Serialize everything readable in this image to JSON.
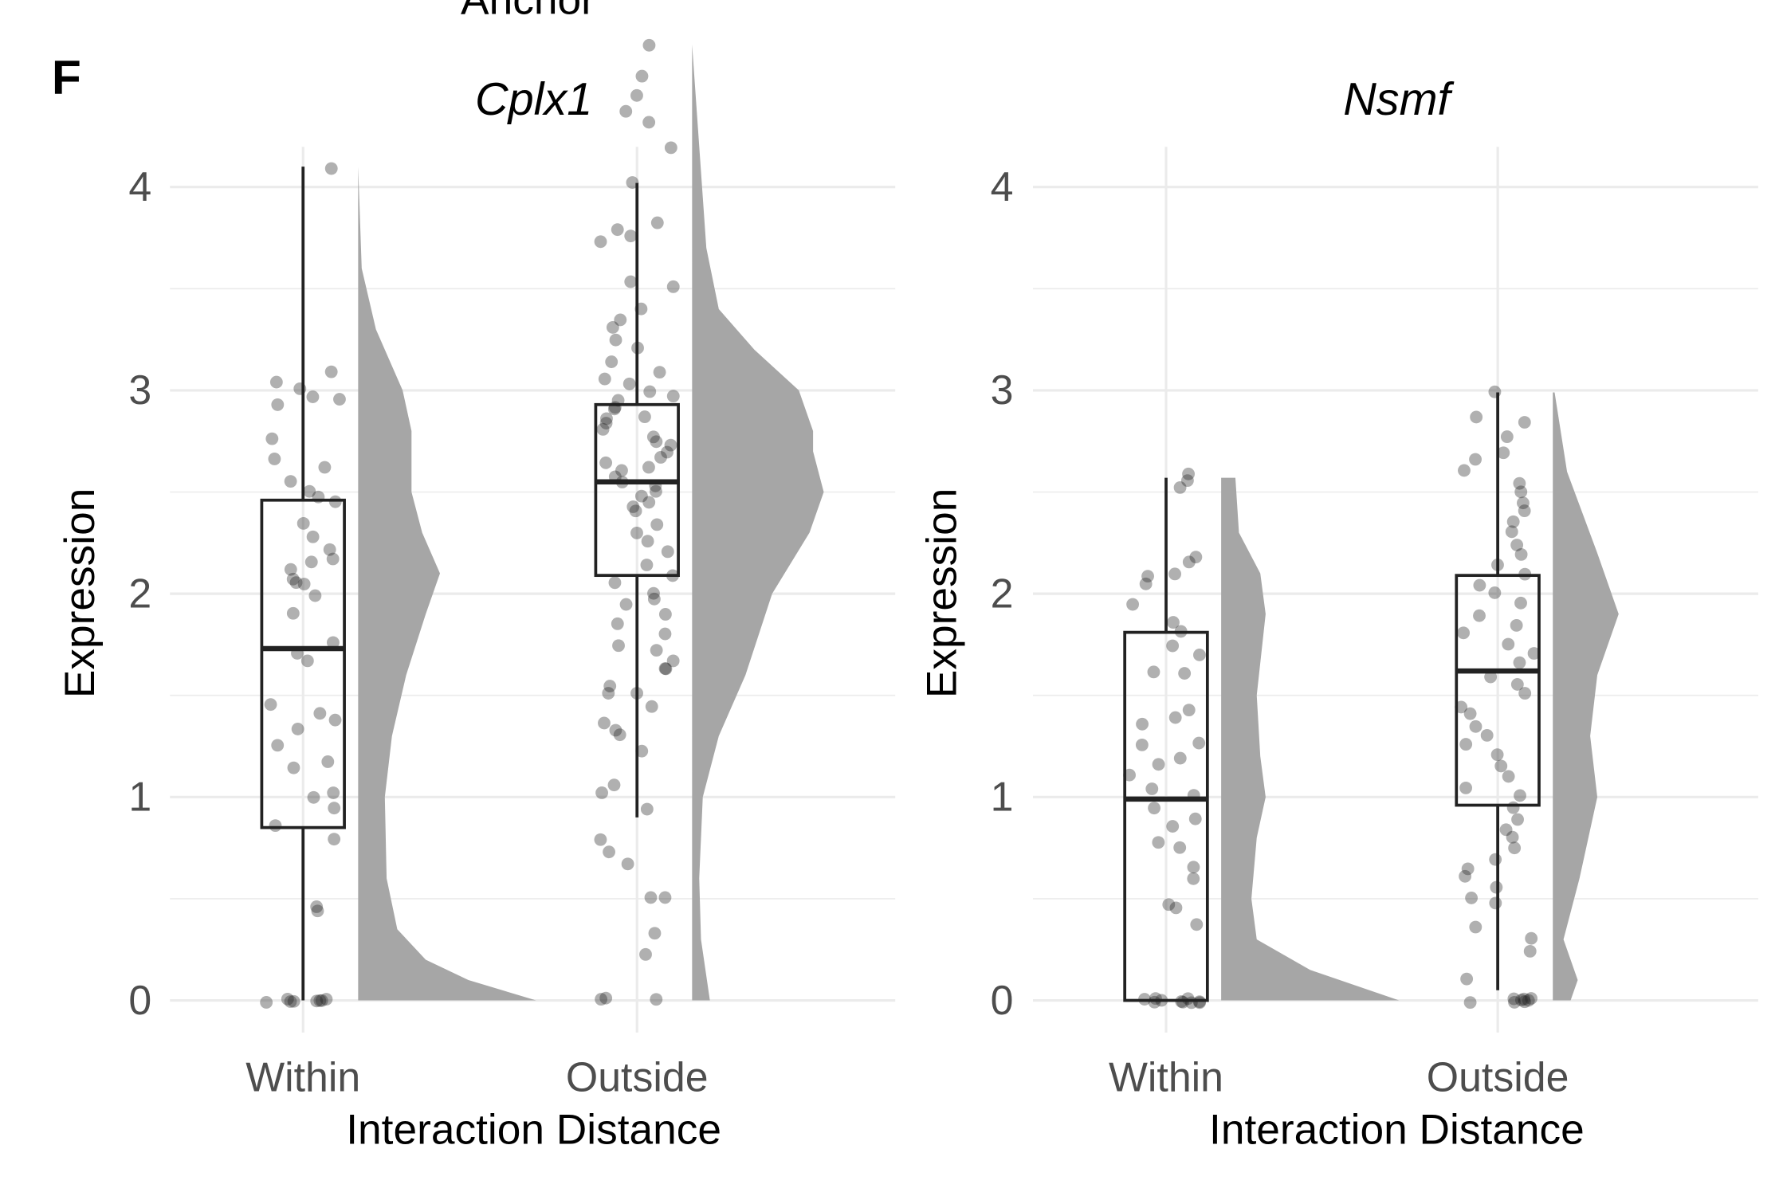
{
  "figure": {
    "panel_letter": "F",
    "top_label": "Anchor"
  },
  "chart_data": [
    {
      "type": "raincloud",
      "title": "Cplx1",
      "xlabel": "Interaction Distance",
      "ylabel": "Expression",
      "ylim": [
        -0.15,
        4.7
      ],
      "yticks": [
        "0",
        "1",
        "2",
        "3",
        "4"
      ],
      "categories": [
        "Within",
        "Outside"
      ],
      "grid": true,
      "groups": [
        {
          "name": "Within",
          "box": {
            "lower_whisker": 0,
            "q1": 0.85,
            "median": 1.73,
            "q3": 2.46,
            "upper_whisker": 4.1
          },
          "points": [
            0,
            0,
            0,
            0,
            0,
            0,
            0,
            0,
            0.43,
            0.46,
            0.8,
            0.86,
            0.95,
            1.0,
            1.03,
            1.14,
            1.17,
            1.25,
            1.33,
            1.38,
            1.42,
            1.45,
            1.67,
            1.7,
            1.75,
            1.9,
            2.0,
            2.04,
            2.05,
            2.07,
            2.12,
            2.15,
            2.17,
            2.22,
            2.28,
            2.35,
            2.45,
            2.47,
            2.5,
            2.55,
            2.63,
            2.67,
            2.76,
            2.92,
            2.95,
            2.96,
            3.01,
            3.05,
            3.1,
            4.1
          ],
          "density": [
            [
              0,
              1.0
            ],
            [
              0.1,
              0.62
            ],
            [
              0.2,
              0.38
            ],
            [
              0.35,
              0.22
            ],
            [
              0.6,
              0.16
            ],
            [
              1.0,
              0.15
            ],
            [
              1.3,
              0.19
            ],
            [
              1.6,
              0.27
            ],
            [
              1.9,
              0.38
            ],
            [
              2.1,
              0.46
            ],
            [
              2.3,
              0.36
            ],
            [
              2.5,
              0.3
            ],
            [
              2.8,
              0.3
            ],
            [
              3.0,
              0.25
            ],
            [
              3.3,
              0.1
            ],
            [
              3.6,
              0.02
            ],
            [
              4.1,
              0.0
            ]
          ]
        },
        {
          "name": "Outside",
          "box": {
            "lower_whisker": 0.9,
            "q1": 2.09,
            "median": 2.55,
            "q3": 2.93,
            "upper_whisker": 4.02
          },
          "points": [
            0,
            0,
            0,
            0.22,
            0.33,
            0.5,
            0.5,
            0.68,
            0.73,
            0.8,
            0.95,
            1.03,
            1.07,
            1.23,
            1.3,
            1.33,
            1.37,
            1.45,
            1.5,
            1.52,
            1.55,
            1.62,
            1.64,
            1.68,
            1.72,
            1.75,
            1.8,
            1.85,
            1.9,
            1.95,
            1.97,
            2.0,
            2.05,
            2.1,
            2.15,
            2.2,
            2.25,
            2.3,
            2.35,
            2.4,
            2.42,
            2.45,
            2.48,
            2.5,
            2.52,
            2.55,
            2.58,
            2.6,
            2.62,
            2.65,
            2.68,
            2.7,
            2.72,
            2.75,
            2.78,
            2.8,
            2.83,
            2.85,
            2.88,
            2.9,
            2.92,
            2.95,
            2.97,
            3.0,
            3.03,
            3.05,
            3.1,
            3.15,
            3.2,
            3.25,
            3.3,
            3.35,
            3.4,
            3.5,
            3.53,
            3.72,
            3.75,
            3.8,
            3.83,
            4.03,
            4.2,
            4.32,
            4.37,
            4.45,
            4.55,
            4.7
          ],
          "density": [
            [
              0,
              0.1
            ],
            [
              0.3,
              0.05
            ],
            [
              0.6,
              0.04
            ],
            [
              1.0,
              0.06
            ],
            [
              1.3,
              0.15
            ],
            [
              1.6,
              0.3
            ],
            [
              2.0,
              0.45
            ],
            [
              2.3,
              0.66
            ],
            [
              2.5,
              0.74
            ],
            [
              2.7,
              0.68
            ],
            [
              2.8,
              0.68
            ],
            [
              3.0,
              0.6
            ],
            [
              3.2,
              0.35
            ],
            [
              3.4,
              0.15
            ],
            [
              3.7,
              0.08
            ],
            [
              4.2,
              0.04
            ],
            [
              4.7,
              0.0
            ]
          ]
        }
      ]
    },
    {
      "type": "raincloud",
      "title": "Nsmf",
      "xlabel": "Interaction Distance",
      "ylabel": "Expression",
      "ylim": [
        -0.15,
        4.7
      ],
      "yticks": [
        "0",
        "1",
        "2",
        "3",
        "4"
      ],
      "categories": [
        "Within",
        "Outside"
      ],
      "grid": true,
      "groups": [
        {
          "name": "Within",
          "box": {
            "lower_whisker": 0,
            "q1": 0,
            "median": 0.99,
            "q3": 1.81,
            "upper_whisker": 2.57
          },
          "points": [
            0,
            0,
            0,
            0,
            0,
            0,
            0,
            0,
            0,
            0,
            0.38,
            0.46,
            0.47,
            0.6,
            0.65,
            0.75,
            0.77,
            0.85,
            0.9,
            0.95,
            1.0,
            1.05,
            1.1,
            1.15,
            1.2,
            1.25,
            1.27,
            1.35,
            1.38,
            1.43,
            1.6,
            1.62,
            1.7,
            1.75,
            1.82,
            1.85,
            1.95,
            2.05,
            2.08,
            2.1,
            2.15,
            2.17,
            2.52,
            2.56,
            2.58
          ],
          "density": [
            [
              0,
              1.0
            ],
            [
              0.15,
              0.5
            ],
            [
              0.3,
              0.2
            ],
            [
              0.5,
              0.17
            ],
            [
              0.8,
              0.2
            ],
            [
              1.0,
              0.25
            ],
            [
              1.2,
              0.22
            ],
            [
              1.5,
              0.2
            ],
            [
              1.9,
              0.25
            ],
            [
              2.1,
              0.22
            ],
            [
              2.3,
              0.1
            ],
            [
              2.57,
              0.08
            ]
          ]
        },
        {
          "name": "Outside",
          "box": {
            "lower_whisker": 0.05,
            "q1": 0.96,
            "median": 1.62,
            "q3": 2.09,
            "upper_whisker": 2.99
          },
          "points": [
            0,
            0,
            0,
            0,
            0,
            0,
            0,
            0,
            0.1,
            0.25,
            0.3,
            0.35,
            0.48,
            0.5,
            0.55,
            0.6,
            0.65,
            0.7,
            0.75,
            0.8,
            0.85,
            0.9,
            0.95,
            1.0,
            1.05,
            1.1,
            1.15,
            1.2,
            1.25,
            1.3,
            1.35,
            1.4,
            1.45,
            1.5,
            1.55,
            1.6,
            1.65,
            1.7,
            1.75,
            1.8,
            1.85,
            1.9,
            1.95,
            2.0,
            2.05,
            2.1,
            2.15,
            2.2,
            2.25,
            2.3,
            2.35,
            2.4,
            2.45,
            2.5,
            2.55,
            2.6,
            2.65,
            2.7,
            2.78,
            2.85,
            2.87,
            2.99
          ],
          "density": [
            [
              0,
              0.1
            ],
            [
              0.1,
              0.14
            ],
            [
              0.3,
              0.06
            ],
            [
              0.6,
              0.15
            ],
            [
              1.0,
              0.25
            ],
            [
              1.3,
              0.21
            ],
            [
              1.6,
              0.25
            ],
            [
              1.9,
              0.37
            ],
            [
              2.2,
              0.25
            ],
            [
              2.6,
              0.08
            ],
            [
              2.99,
              0.01
            ]
          ]
        }
      ]
    }
  ]
}
